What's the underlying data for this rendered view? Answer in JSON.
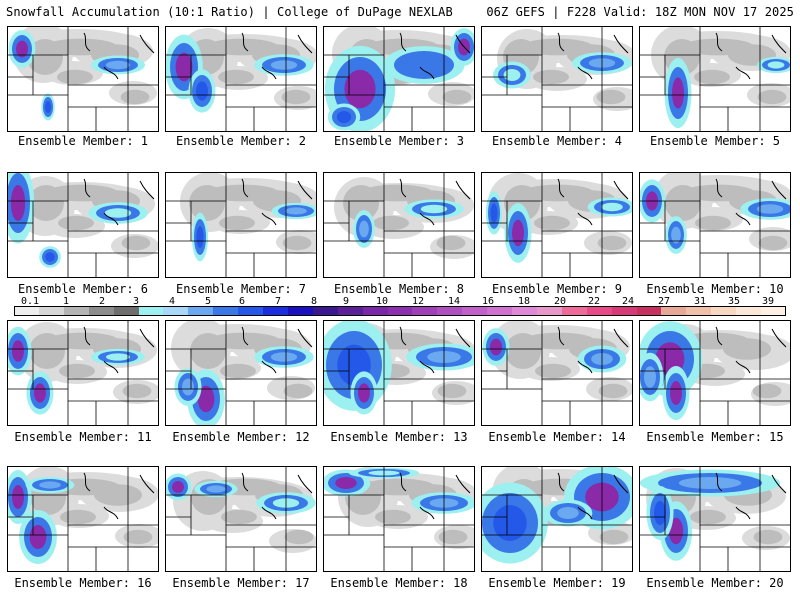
{
  "header": {
    "left_title": "Snowfall Accumulation (10:1 Ratio) | College of DuPage NEXLAB",
    "right_title": "06Z GEFS | F228 Valid: 18Z MON NOV 17 2025"
  },
  "members": [
    {
      "label": "Ensemble Member: 1"
    },
    {
      "label": "Ensemble Member: 2"
    },
    {
      "label": "Ensemble Member: 3"
    },
    {
      "label": "Ensemble Member: 4"
    },
    {
      "label": "Ensemble Member: 5"
    },
    {
      "label": "Ensemble Member: 6"
    },
    {
      "label": "Ensemble Member: 7"
    },
    {
      "label": "Ensemble Member: 8"
    },
    {
      "label": "Ensemble Member: 9"
    },
    {
      "label": "Ensemble Member: 10"
    },
    {
      "label": "Ensemble Member: 11"
    },
    {
      "label": "Ensemble Member: 12"
    },
    {
      "label": "Ensemble Member: 13"
    },
    {
      "label": "Ensemble Member: 14"
    },
    {
      "label": "Ensemble Member: 15"
    },
    {
      "label": "Ensemble Member: 16"
    },
    {
      "label": "Ensemble Member: 17"
    },
    {
      "label": "Ensemble Member: 18"
    },
    {
      "label": "Ensemble Member: 19"
    },
    {
      "label": "Ensemble Member: 20"
    }
  ],
  "colorbar": {
    "ticks": [
      "0.1",
      "1",
      "2",
      "3",
      "4",
      "5",
      "6",
      "7",
      "8",
      "9",
      "10",
      "12",
      "14",
      "16",
      "18",
      "20",
      "22",
      "24",
      "27",
      "31",
      "35",
      "39"
    ],
    "colors": [
      "#eeeeee",
      "#d6d6d6",
      "#b4b4b4",
      "#8c8c8c",
      "#6e6e6e",
      "#9df0f0",
      "#a8d8f8",
      "#6aa8f0",
      "#3a78e8",
      "#2458e8",
      "#1a2ee0",
      "#1a10c0",
      "#3a1890",
      "#5a2098",
      "#7a28a8",
      "#8c30b0",
      "#a040b8",
      "#b050c0",
      "#c060c8",
      "#d070d0",
      "#e088d8",
      "#e898c8",
      "#ee6a98",
      "#e84a88",
      "#d83a78",
      "#c83060",
      "#e8a898",
      "#f0c0a8",
      "#f8d8c0",
      "#fce8d8",
      "#fff0e6"
    ]
  }
}
